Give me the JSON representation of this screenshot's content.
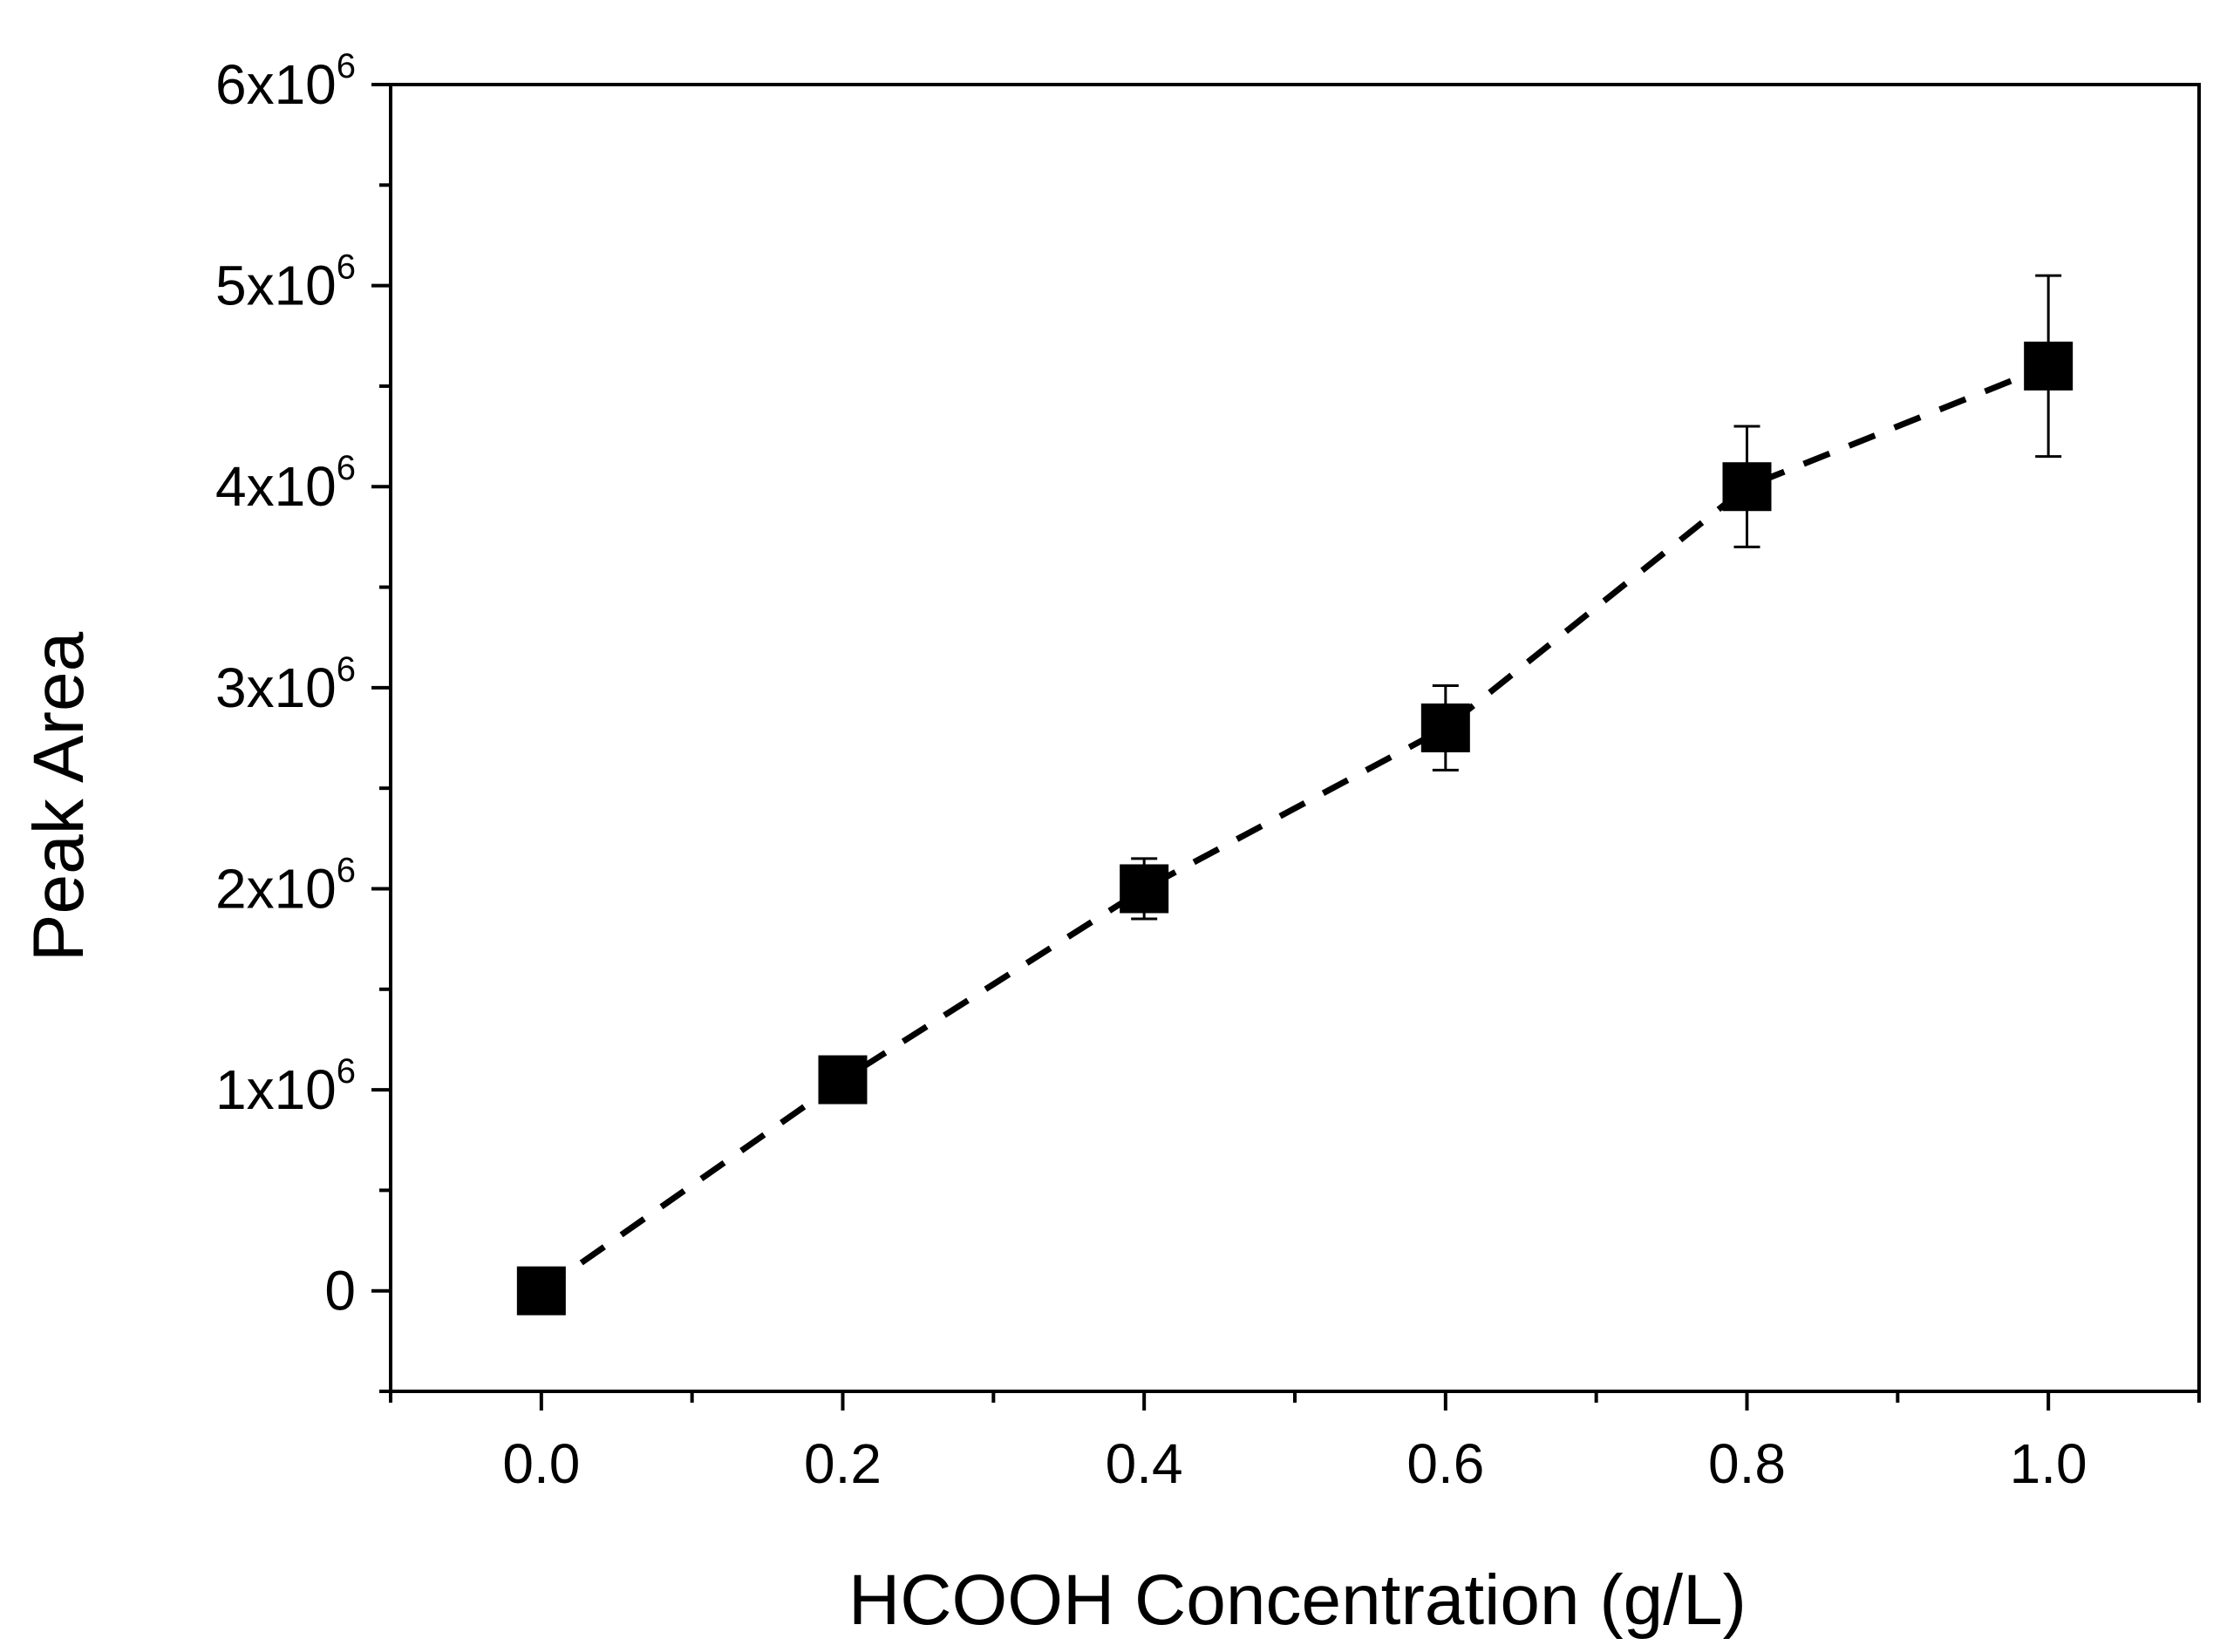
{
  "chart_data": {
    "type": "scatter",
    "title": "",
    "xlabel": "HCOOH Concentration (g/L)",
    "ylabel": "Peak Area",
    "xlim": [
      -0.1,
      1.1
    ],
    "ylim": [
      -500000,
      6000000
    ],
    "grid": false,
    "legend": "none",
    "x_ticks": [
      0.0,
      0.2,
      0.4,
      0.6,
      0.8,
      1.0
    ],
    "x_tick_labels": [
      "0.0",
      "0.2",
      "0.4",
      "0.6",
      "0.8",
      "1.0"
    ],
    "x_minor_ticks": [
      -0.1,
      0.1,
      0.3,
      0.5,
      0.7,
      0.9,
      1.1
    ],
    "y_ticks": [
      {
        "value": 0,
        "label": "0",
        "exp": ""
      },
      {
        "value": 1000000,
        "label": "1x10",
        "exp": "6"
      },
      {
        "value": 2000000,
        "label": "2x10",
        "exp": "6"
      },
      {
        "value": 3000000,
        "label": "3x10",
        "exp": "6"
      },
      {
        "value": 4000000,
        "label": "4x10",
        "exp": "6"
      },
      {
        "value": 5000000,
        "label": "5x10",
        "exp": "6"
      },
      {
        "value": 6000000,
        "label": "6x10",
        "exp": "6"
      }
    ],
    "y_minor_ticks": [
      -500000,
      500000,
      1500000,
      2500000,
      3500000,
      4500000,
      5500000
    ],
    "series": [
      {
        "name": "Peak Area",
        "marker": "square",
        "color": "#000000",
        "line": "dashed",
        "x": [
          0.0,
          0.2,
          0.4,
          0.6,
          0.8,
          1.0
        ],
        "y": [
          0,
          1050000,
          2000000,
          2800000,
          4000000,
          4600000
        ],
        "yerr": [
          0,
          100000,
          150000,
          210000,
          300000,
          450000
        ]
      }
    ]
  }
}
